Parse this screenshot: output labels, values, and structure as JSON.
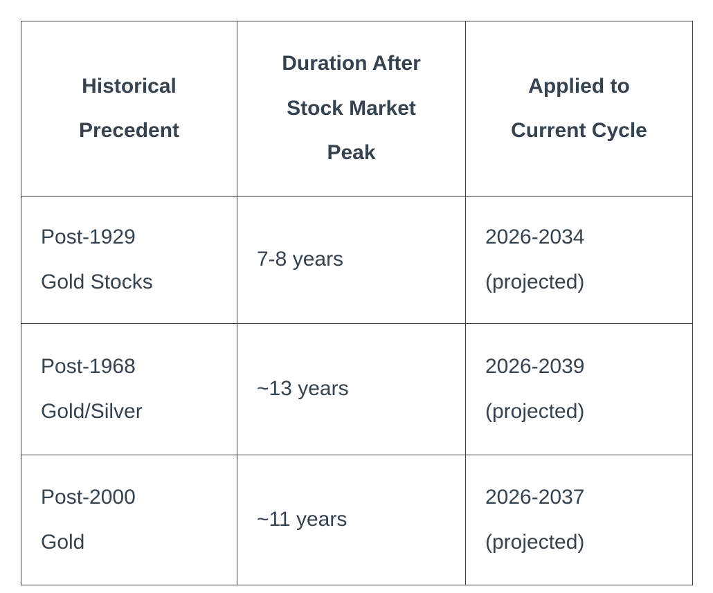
{
  "table": {
    "headers": [
      "Historical\nPrecedent",
      "Duration After\nStock Market\nPeak",
      "Applied to\nCurrent Cycle"
    ],
    "rows": [
      [
        "Post-1929\nGold Stocks",
        "7-8 years",
        "2026-2034\n(projected)"
      ],
      [
        "Post-1968\nGold/Silver",
        "~13 years",
        "2026-2039\n(projected)"
      ],
      [
        "Post-2000\nGold",
        "~11 years",
        "2026-2037\n(projected)"
      ]
    ]
  },
  "colors": {
    "text": "#35424f",
    "border": "#3d3d3d",
    "background": "#ffffff"
  }
}
